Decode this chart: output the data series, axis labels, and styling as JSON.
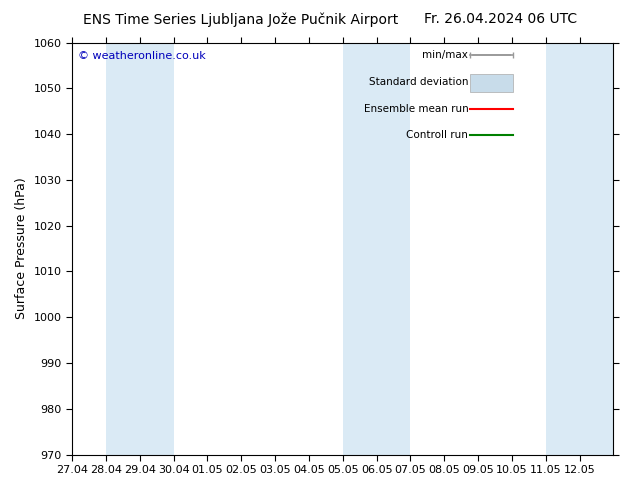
{
  "title_left": "ENS Time Series Ljubljana Jože Pučnik Airport",
  "title_right": "Fr. 26.04.2024 06 UTC",
  "ylabel": "Surface Pressure (hPa)",
  "ylim": [
    970,
    1060
  ],
  "yticks": [
    970,
    980,
    990,
    1000,
    1010,
    1020,
    1030,
    1040,
    1050,
    1060
  ],
  "bg_color": "#ffffff",
  "plot_bg_color": "#ffffff",
  "band_color": "#daeaf5",
  "copyright_text": "© weatheronline.co.uk",
  "copyright_color": "#0000bb",
  "legend_labels": [
    "min/max",
    "Standard deviation",
    "Ensemble mean run",
    "Controll run"
  ],
  "legend_colors_line": [
    "#999999",
    "#bbcfdf",
    "#ff0000",
    "#008000"
  ],
  "x_tick_labels": [
    "27.04",
    "28.04",
    "29.04",
    "30.04",
    "01.05",
    "02.05",
    "03.05",
    "04.05",
    "05.05",
    "06.05",
    "07.05",
    "08.05",
    "09.05",
    "10.05",
    "11.05",
    "12.05"
  ],
  "band_ranges": [
    [
      1,
      2
    ],
    [
      2,
      3
    ],
    [
      8,
      9
    ],
    [
      9,
      10
    ],
    [
      14,
      15
    ],
    [
      15,
      16
    ]
  ],
  "title_fontsize": 10,
  "axis_label_fontsize": 9,
  "tick_fontsize": 8,
  "x_min": 0,
  "x_max": 16
}
